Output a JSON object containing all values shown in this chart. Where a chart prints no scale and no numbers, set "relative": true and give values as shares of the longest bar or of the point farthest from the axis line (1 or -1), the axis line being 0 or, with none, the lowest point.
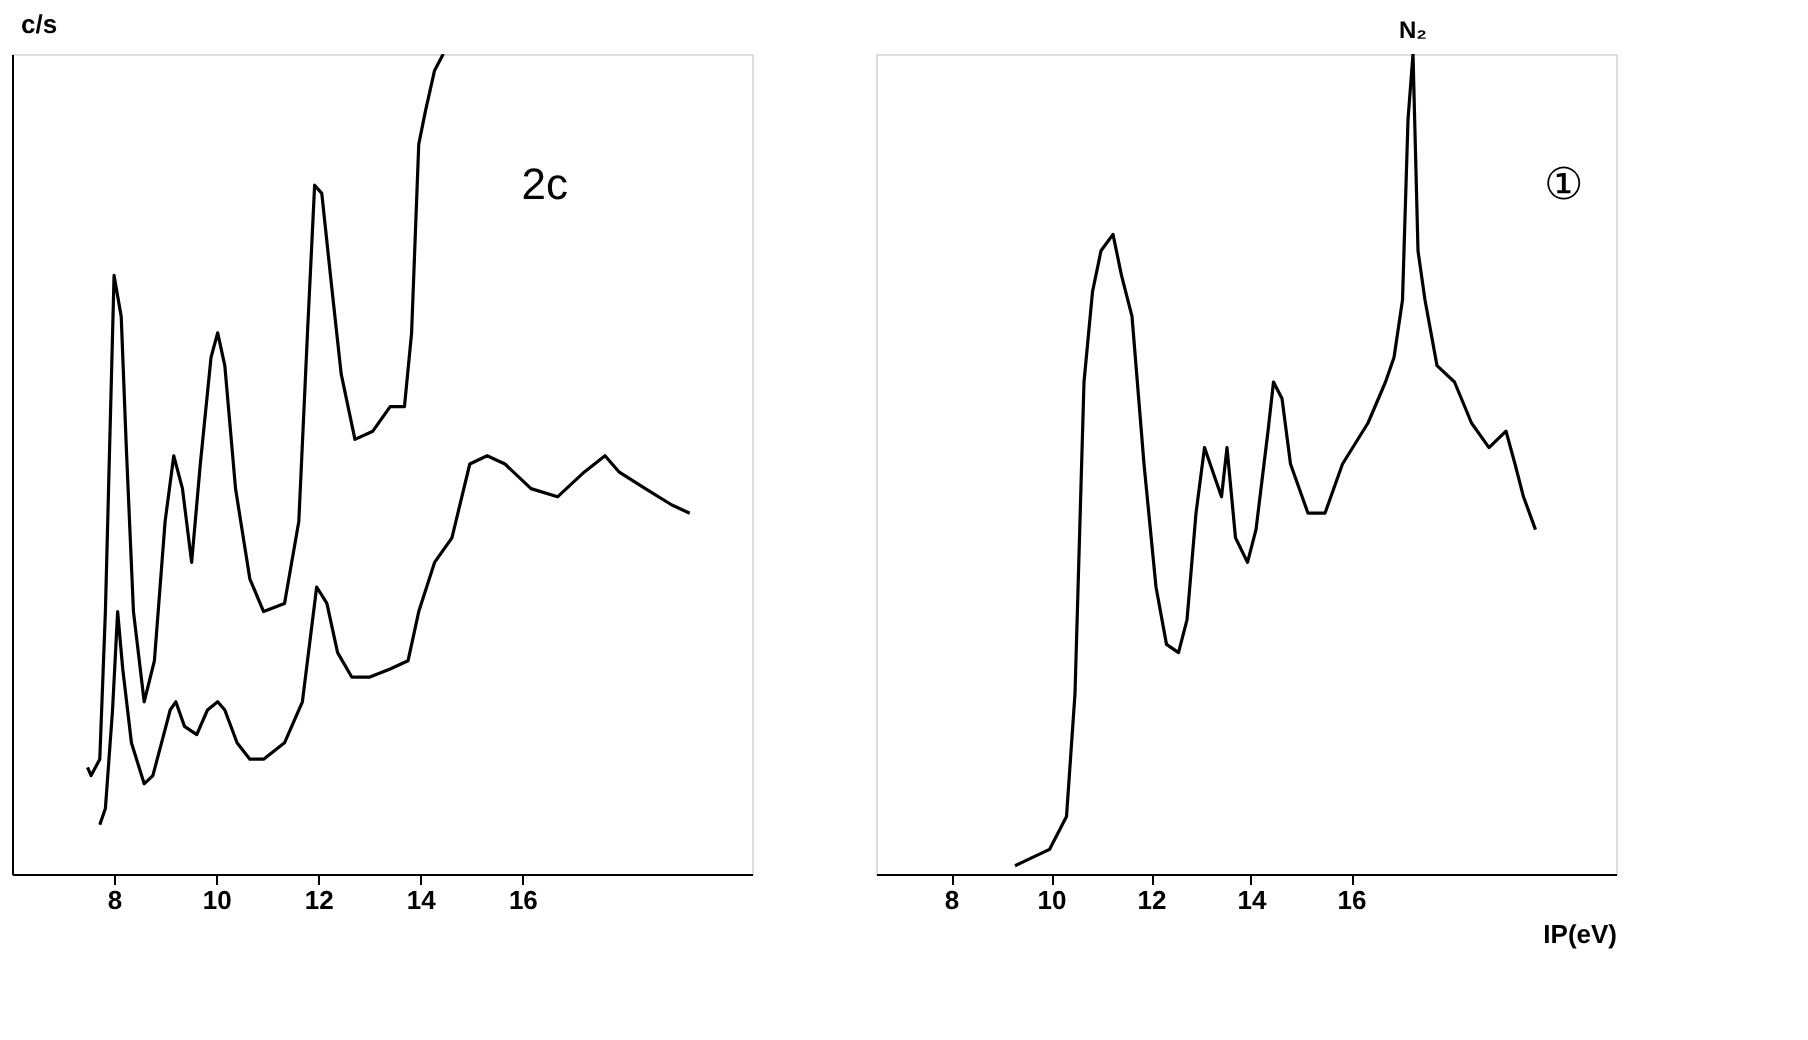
{
  "chart_data": [
    {
      "type": "line",
      "relative": true,
      "ylabel": "c/s",
      "xlim": [
        6,
        20.5
      ],
      "xticks": [
        8,
        10,
        12,
        14,
        16
      ],
      "tick_labels": "x",
      "grid": false,
      "annotations": [
        "2c"
      ],
      "series": [
        {
          "color": "#000000",
          "x": [
            7.48,
            7.55,
            7.72,
            7.83,
            8.0,
            8.14,
            8.24,
            8.38,
            8.59,
            8.79,
            9.0,
            9.17,
            9.34,
            9.52,
            9.69,
            9.9,
            10.03,
            10.17,
            10.38,
            10.66,
            10.93,
            11.34,
            11.62,
            11.79,
            11.93,
            12.07,
            12.24,
            12.45,
            12.72,
            13.07,
            13.41,
            13.69,
            13.83,
            13.97,
            14.1,
            14.28,
            14.45
          ],
          "values": [
            0.13,
            0.12,
            0.14,
            0.32,
            0.73,
            0.68,
            0.52,
            0.32,
            0.21,
            0.26,
            0.43,
            0.51,
            0.47,
            0.38,
            0.5,
            0.63,
            0.66,
            0.62,
            0.47,
            0.36,
            0.32,
            0.33,
            0.43,
            0.66,
            0.84,
            0.83,
            0.73,
            0.61,
            0.53,
            0.54,
            0.57,
            0.57,
            0.66,
            0.89,
            0.93,
            0.98,
            1.0
          ]
        },
        {
          "color": "#000000",
          "x": [
            7.72,
            7.83,
            7.97,
            8.07,
            8.17,
            8.34,
            8.59,
            8.76,
            8.93,
            9.1,
            9.21,
            9.38,
            9.62,
            9.83,
            10.03,
            10.17,
            10.41,
            10.66,
            10.93,
            11.34,
            11.69,
            11.97,
            12.17,
            12.38,
            12.66,
            13.0,
            13.41,
            13.76,
            13.97,
            14.28,
            14.62,
            14.97,
            15.31,
            15.66,
            16.17,
            16.69,
            17.21,
            17.62,
            17.9,
            18.41,
            18.93,
            19.28
          ],
          "values": [
            0.06,
            0.08,
            0.2,
            0.32,
            0.25,
            0.16,
            0.11,
            0.12,
            0.16,
            0.2,
            0.21,
            0.18,
            0.17,
            0.2,
            0.21,
            0.2,
            0.16,
            0.14,
            0.14,
            0.16,
            0.21,
            0.35,
            0.33,
            0.27,
            0.24,
            0.24,
            0.25,
            0.26,
            0.32,
            0.38,
            0.41,
            0.5,
            0.51,
            0.5,
            0.47,
            0.46,
            0.49,
            0.51,
            0.49,
            0.47,
            0.45,
            0.44
          ]
        }
      ]
    },
    {
      "type": "line",
      "relative": true,
      "xlabel": "IP(eV)",
      "xlim": [
        6.5,
        21.3
      ],
      "xticks": [
        8,
        10,
        12,
        14,
        16
      ],
      "tick_labels": "x",
      "grid": false,
      "annotations": [
        {
          "text": "N₂",
          "x": 17.24,
          "y": 1.0
        },
        "①"
      ],
      "series": [
        {
          "color": "#000000",
          "x": [
            9.28,
            9.97,
            10.31,
            10.48,
            10.66,
            10.83,
            11.0,
            11.24,
            11.41,
            11.62,
            11.86,
            12.1,
            12.31,
            12.55,
            12.72,
            12.9,
            13.07,
            13.24,
            13.41,
            13.52,
            13.69,
            13.93,
            14.1,
            14.34,
            14.45,
            14.62,
            14.79,
            15.14,
            15.48,
            15.83,
            16.34,
            16.69,
            16.86,
            17.03,
            17.14,
            17.24,
            17.34,
            17.48,
            17.72,
            18.07,
            18.41,
            18.76,
            19.1,
            19.28,
            19.45,
            19.69
          ],
          "values": [
            0.01,
            0.03,
            0.07,
            0.22,
            0.6,
            0.71,
            0.76,
            0.78,
            0.73,
            0.68,
            0.5,
            0.35,
            0.28,
            0.27,
            0.31,
            0.44,
            0.52,
            0.49,
            0.46,
            0.52,
            0.41,
            0.38,
            0.42,
            0.54,
            0.6,
            0.58,
            0.5,
            0.44,
            0.44,
            0.5,
            0.55,
            0.6,
            0.63,
            0.7,
            0.92,
            1.0,
            0.76,
            0.7,
            0.62,
            0.6,
            0.55,
            0.52,
            0.54,
            0.5,
            0.46,
            0.42
          ]
        }
      ]
    }
  ]
}
